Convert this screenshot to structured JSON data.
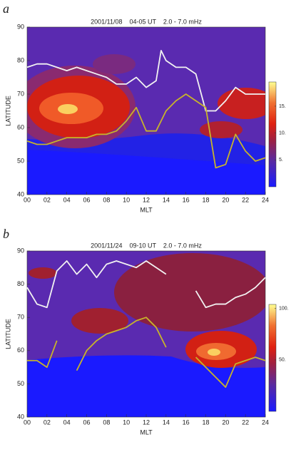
{
  "chart_data": [
    {
      "type": "line",
      "label": "a",
      "title": "2001/11/08    04-05 UT    2.0 - 7.0 mHz",
      "x_label": "MLT",
      "y_label": "LATITUDE",
      "xlim": [
        0,
        24
      ],
      "ylim": [
        40,
        90
      ],
      "xticks": [
        {
          "value": 0,
          "label": "00"
        },
        {
          "value": 2,
          "label": "02"
        },
        {
          "value": 4,
          "label": "04"
        },
        {
          "value": 6,
          "label": "06"
        },
        {
          "value": 8,
          "label": "08"
        },
        10,
        12,
        14,
        16,
        18,
        20,
        22,
        24
      ],
      "yticks": [
        40,
        50,
        60,
        70,
        80,
        90
      ],
      "x": [
        0,
        1,
        2,
        3,
        4,
        5,
        6,
        7,
        8,
        9,
        10,
        11,
        12,
        13,
        13.5,
        14,
        15,
        16,
        17,
        18,
        19,
        20,
        21,
        22,
        23,
        24
      ],
      "series": [
        {
          "color": "#f2f2f2",
          "values": [
            78,
            79,
            79,
            78,
            77,
            78,
            77,
            76,
            75,
            73,
            73,
            75,
            72,
            74,
            83,
            80,
            78,
            78,
            76,
            65,
            65,
            68,
            72,
            70,
            70,
            70
          ]
        },
        {
          "color": "#c8b42a",
          "values": [
            56,
            55,
            55,
            56,
            57,
            57,
            57,
            58,
            58,
            59,
            62,
            66,
            59,
            59,
            62,
            65,
            68,
            70,
            68,
            66,
            48,
            49,
            58,
            53,
            50,
            51
          ]
        }
      ],
      "colorbar": {
        "lim": [
          0,
          19.5
        ],
        "ticks": [
          {
            "value": 5,
            "label": "5."
          },
          {
            "value": 10,
            "label": "10."
          },
          {
            "value": 15,
            "label": "15."
          }
        ]
      }
    },
    {
      "type": "line",
      "label": "b",
      "title": "2001/11/24    09-10 UT    2.0 - 7.0 mHz",
      "x_label": "MLT",
      "y_label": "LATITUDE",
      "xlim": [
        0,
        24
      ],
      "ylim": [
        40,
        90
      ],
      "xticks": [
        {
          "value": 0,
          "label": "00"
        },
        {
          "value": 2,
          "label": "02"
        },
        {
          "value": 4,
          "label": "04"
        },
        {
          "value": 6,
          "label": "06"
        },
        {
          "value": 8,
          "label": "08"
        },
        10,
        12,
        14,
        16,
        18,
        20,
        22,
        24
      ],
      "yticks": [
        40,
        50,
        60,
        70,
        80,
        90
      ],
      "x": [
        0,
        1,
        2,
        3,
        4,
        5,
        6,
        7,
        8,
        9,
        10,
        11,
        12,
        13,
        14,
        15,
        16,
        17,
        18,
        19,
        20,
        21,
        22,
        23,
        24
      ],
      "series": [
        {
          "color": "#f2f2f2",
          "values": [
            79,
            74,
            73,
            84,
            87,
            83,
            86,
            82,
            86,
            87,
            86,
            85,
            87,
            85,
            83,
            null,
            null,
            78,
            73,
            74,
            74,
            76,
            77,
            79,
            82
          ]
        },
        {
          "color": "#c8b42a",
          "values": [
            57,
            57,
            55,
            63,
            null,
            54,
            60,
            63,
            65,
            66,
            67,
            69,
            70,
            67,
            61,
            null,
            null,
            58,
            55,
            52,
            49,
            56,
            57,
            58,
            57
          ]
        }
      ],
      "colorbar": {
        "lim": [
          0,
          104
        ],
        "ticks": [
          {
            "value": 50,
            "label": "50."
          },
          {
            "value": 100,
            "label": "100."
          }
        ]
      }
    }
  ]
}
